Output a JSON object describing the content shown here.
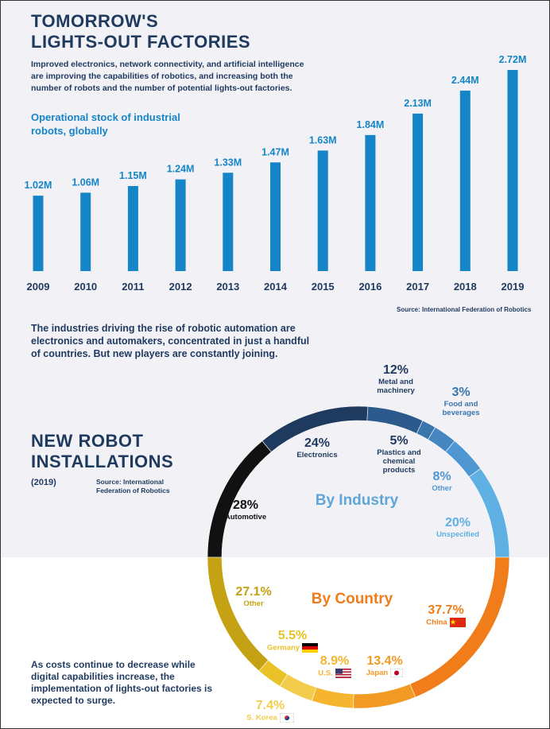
{
  "header": {
    "title_line1": "TOMORROW'S",
    "title_line2": "LIGHTS-OUT FACTORIES",
    "intro": "Improved electronics, network connectivity, and artificial intelligence are improving the capabilities of robotics, and increasing both the number of robots and the number of potential lights-out factories.",
    "chart_subtitle": "Operational stock of industrial robots, globally",
    "source": "Source: International Federation of Robotics"
  },
  "mid_paragraph": "The industries driving the rise of robotic automation are electronics and automakers, concentrated in just a handful of countries. But new players are constantly joining.",
  "installations": {
    "title_line1": "NEW ROBOT",
    "title_line2": "INSTALLATIONS",
    "year": "(2019)",
    "source": "Source: International Federation of Robotics"
  },
  "bottom_paragraph": "As costs continue to decrease while digital capabilities increase, the implementation of lights-out factories is expected to surge.",
  "colors": {
    "bar": "#1585c8",
    "navy": "#1f3a5f",
    "orange": "#f07d1a",
    "gold": "#c4a214"
  },
  "chart_data": [
    {
      "type": "bar",
      "title": "Operational stock of industrial robots, globally",
      "categories": [
        "2009",
        "2010",
        "2011",
        "2012",
        "2013",
        "2014",
        "2015",
        "2016",
        "2017",
        "2018",
        "2019"
      ],
      "values": [
        1.02,
        1.06,
        1.15,
        1.24,
        1.33,
        1.47,
        1.63,
        1.84,
        2.13,
        2.44,
        2.72
      ],
      "value_labels": [
        "1.02M",
        "1.06M",
        "1.15M",
        "1.24M",
        "1.33M",
        "1.47M",
        "1.63M",
        "1.84M",
        "2.13M",
        "2.44M",
        "2.72M"
      ],
      "unit": "M",
      "grid": false
    },
    {
      "type": "pie",
      "title": "By Industry",
      "slices": [
        {
          "name": "Automotive",
          "pct": "28%",
          "value": 28,
          "color": "#111111"
        },
        {
          "name": "Electronics",
          "pct": "24%",
          "value": 24,
          "color": "#1f3a5f"
        },
        {
          "name": "Metal and machinery",
          "pct": "12%",
          "value": 12,
          "color": "#2c5a8c"
        },
        {
          "name": "Food and beverages",
          "pct": "3%",
          "value": 3,
          "color": "#3a76ac"
        },
        {
          "name": "Plastics and chemical products",
          "pct": "5%",
          "value": 5,
          "color": "#4586c0"
        },
        {
          "name": "Other",
          "pct": "8%",
          "value": 8,
          "color": "#4f97d2"
        },
        {
          "name": "Unspecified",
          "pct": "20%",
          "value": 20,
          "color": "#5fb1e4"
        }
      ]
    },
    {
      "type": "pie",
      "title": "By Country",
      "slices": [
        {
          "name": "China",
          "pct": "37.7%",
          "value": 37.7,
          "color": "#f07d1a"
        },
        {
          "name": "Japan",
          "pct": "13.4%",
          "value": 13.4,
          "color": "#f39a24"
        },
        {
          "name": "U.S.",
          "pct": "8.9%",
          "value": 8.9,
          "color": "#f5b52f"
        },
        {
          "name": "S. Korea",
          "pct": "7.4%",
          "value": 7.4,
          "color": "#f2cc4a"
        },
        {
          "name": "Germany",
          "pct": "5.5%",
          "value": 5.5,
          "color": "#e8c227"
        },
        {
          "name": "Other",
          "pct": "27.1%",
          "value": 27.1,
          "color": "#c4a214"
        }
      ]
    }
  ]
}
